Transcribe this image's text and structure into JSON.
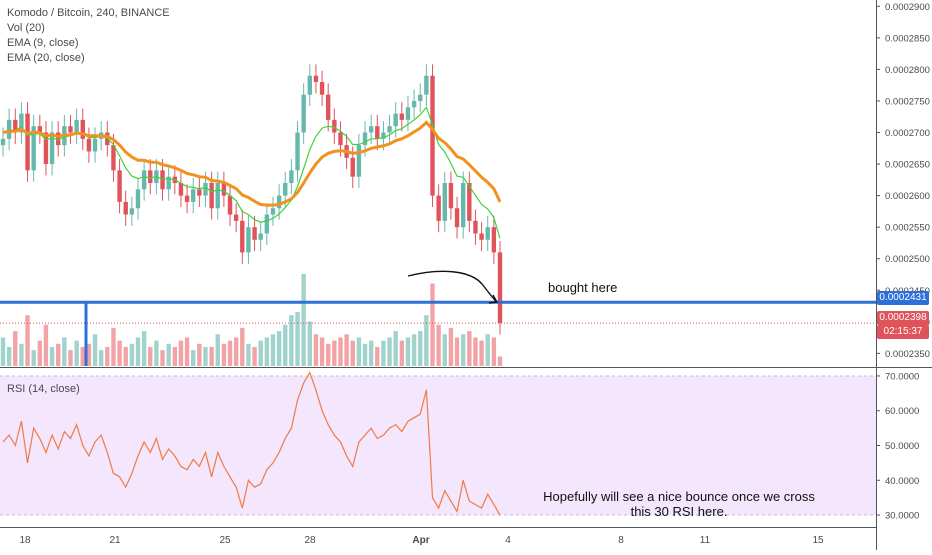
{
  "legend": {
    "symbol": "Komodo / Bitcoin, 240, BINANCE",
    "vol": "Vol (20)",
    "ema9": "EMA (9, close)",
    "ema20": "EMA (20, close)"
  },
  "rsi_label": "RSI (14, close)",
  "annotations": {
    "bought": "bought here",
    "bounce": "Hopefully will see a nice bounce once we cross this 30 RSI here."
  },
  "price_tags": {
    "line_price": "0.0002431",
    "last_price": "0.0002398",
    "countdown": "02:15:37"
  },
  "colors": {
    "up": "#67b8ac",
    "down": "#e0535a",
    "ema9": "#3fd23f",
    "ema20": "#f0921e",
    "hline": "#2f6fd8",
    "rsi": "#f07a45",
    "rsi_band": "#f3e6fd",
    "vol_up": "#9fd3cc",
    "vol_down": "#f2a3a6"
  },
  "chart_data": [
    {
      "type": "candlestick",
      "ylim": [
        0.000233,
        0.000291
      ],
      "y_ticks": [
        "0.0002350",
        "0.0002400",
        "0.0002450",
        "0.0002500",
        "0.0002550",
        "0.0002600",
        "0.0002650",
        "0.0002700",
        "0.0002750",
        "0.0002800",
        "0.0002850",
        "0.0002900"
      ],
      "x_ticks": [
        "18",
        "21",
        "25",
        "28",
        "Apr",
        "4",
        "8",
        "11",
        "15"
      ],
      "horizontal_line": 0.0002431,
      "last_price": 0.0002398,
      "close": [
        0.000269,
        0.000272,
        0.00027,
        0.000273,
        0.000264,
        0.000271,
        0.00027,
        0.000265,
        0.00027,
        0.000268,
        0.000271,
        0.00027,
        0.000272,
        0.000269,
        0.000267,
        0.000269,
        0.00027,
        0.000268,
        0.000264,
        0.000259,
        0.000257,
        0.000258,
        0.000261,
        0.000264,
        0.000262,
        0.000264,
        0.000261,
        0.000263,
        0.000262,
        0.00026,
        0.000259,
        0.000261,
        0.00026,
        0.000262,
        0.000258,
        0.000262,
        0.00026,
        0.000257,
        0.000256,
        0.000251,
        0.000255,
        0.000253,
        0.000254,
        0.000257,
        0.000258,
        0.00026,
        0.000262,
        0.000264,
        0.00027,
        0.000276,
        0.000279,
        0.000278,
        0.000276,
        0.000272,
        0.00027,
        0.000268,
        0.000266,
        0.000263,
        0.000268,
        0.00027,
        0.000271,
        0.000269,
        0.00027,
        0.000271,
        0.000273,
        0.000272,
        0.000274,
        0.000275,
        0.000276,
        0.000279,
        0.00026,
        0.000256,
        0.000262,
        0.000258,
        0.000255,
        0.000262,
        0.000256,
        0.000254,
        0.000253,
        0.000255,
        0.000251,
        0.0002398
      ],
      "ema9": [
        0.00027,
        0.0002704,
        0.0002703,
        0.0002709,
        0.0002695,
        0.0002698,
        0.0002698,
        0.0002689,
        0.0002691,
        0.0002689,
        0.0002693,
        0.0002695,
        0.00027,
        0.0002698,
        0.0002692,
        0.0002692,
        0.0002694,
        0.0002691,
        0.0002681,
        0.0002663,
        0.0002644,
        0.0002631,
        0.0002627,
        0.000263,
        0.0002628,
        0.000263,
        0.0002626,
        0.0002627,
        0.0002625,
        0.000262,
        0.0002614,
        0.0002613,
        0.0002611,
        0.0002613,
        0.0002606,
        0.0002609,
        0.0002607,
        0.00026,
        0.0002592,
        0.0002575,
        0.000257,
        0.0002562,
        0.0002558,
        0.000256,
        0.0002564,
        0.0002571,
        0.0002581,
        0.0002593,
        0.0002614,
        0.0002643,
        0.0002673,
        0.0002694,
        0.0002707,
        0.000271,
        0.0002708,
        0.0002702,
        0.0002694,
        0.0002681,
        0.0002681,
        0.0002685,
        0.000269,
        0.000269,
        0.0002692,
        0.0002696,
        0.0002703,
        0.0002706,
        0.0002713,
        0.000272,
        0.0002728,
        0.000274,
        0.0002712,
        0.0002681,
        0.0002669,
        0.0002651,
        0.0002631,
        0.0002629,
        0.0002615,
        0.00026,
        0.0002586,
        0.0002579,
        0.0002565,
        0.0002532
      ],
      "ema20": [
        0.00027,
        0.0002702,
        0.0002702,
        0.0002705,
        0.0002699,
        0.00027,
        0.00027,
        0.0002695,
        0.0002696,
        0.0002694,
        0.0002696,
        0.0002696,
        0.0002699,
        0.0002698,
        0.0002695,
        0.0002695,
        0.0002695,
        0.0002694,
        0.0002689,
        0.000268,
        0.0002669,
        0.0002661,
        0.0002656,
        0.0002656,
        0.0002653,
        0.0002653,
        0.0002649,
        0.0002647,
        0.0002644,
        0.000264,
        0.0002635,
        0.0002633,
        0.000263,
        0.0002629,
        0.0002624,
        0.0002623,
        0.0002621,
        0.0002616,
        0.0002611,
        0.0002601,
        0.0002597,
        0.0002591,
        0.0002586,
        0.0002585,
        0.0002585,
        0.0002586,
        0.000259,
        0.0002595,
        0.0002605,
        0.000262,
        0.0002636,
        0.000265,
        0.0002661,
        0.0002667,
        0.000267,
        0.0002671,
        0.000267,
        0.0002667,
        0.0002668,
        0.0002671,
        0.0002675,
        0.0002677,
        0.0002679,
        0.0002682,
        0.0002687,
        0.000269,
        0.0002695,
        0.0002701,
        0.0002707,
        0.0002716,
        0.0002705,
        0.0002691,
        0.0002684,
        0.0002674,
        0.0002662,
        0.0002658,
        0.0002649,
        0.0002639,
        0.0002629,
        0.0002621,
        0.0002611,
        0.000259
      ],
      "volume": [
        0.9,
        0.6,
        1.1,
        0.7,
        1.6,
        0.5,
        0.8,
        1.3,
        0.6,
        0.7,
        0.9,
        0.5,
        0.8,
        0.6,
        0.7,
        1.0,
        0.5,
        0.6,
        1.2,
        0.8,
        0.6,
        0.7,
        0.9,
        1.1,
        0.6,
        0.8,
        0.5,
        0.7,
        0.6,
        0.8,
        0.9,
        0.5,
        0.7,
        0.6,
        0.6,
        1.0,
        0.7,
        0.8,
        0.9,
        1.2,
        0.7,
        0.6,
        0.8,
        0.9,
        1.0,
        1.1,
        1.3,
        1.6,
        1.7,
        2.9,
        1.4,
        1.0,
        0.9,
        0.7,
        0.8,
        0.9,
        1.0,
        0.8,
        0.9,
        0.7,
        0.8,
        0.6,
        0.8,
        0.9,
        1.1,
        0.8,
        0.9,
        1.0,
        1.1,
        1.6,
        2.6,
        1.3,
        1.0,
        1.2,
        0.9,
        1.0,
        1.1,
        0.9,
        0.8,
        1.0,
        0.9,
        0.3
      ]
    },
    {
      "type": "line",
      "name": "RSI (14, close)",
      "ylim": [
        28,
        72
      ],
      "y_ticks": [
        "30.0000",
        "40.0000",
        "50.0000",
        "60.0000",
        "70.0000"
      ],
      "band": [
        30,
        70
      ],
      "values": [
        51,
        53,
        50,
        57,
        45,
        55,
        52,
        48,
        53,
        49,
        54,
        52,
        56,
        50,
        47,
        51,
        53,
        48,
        42,
        41,
        38,
        42,
        47,
        51,
        48,
        52,
        46,
        49,
        47,
        44,
        43,
        46,
        44,
        48,
        41,
        48,
        44,
        41,
        38,
        32,
        40,
        38,
        39,
        43,
        45,
        48,
        52,
        55,
        63,
        68,
        71,
        66,
        60,
        56,
        53,
        51,
        47,
        44,
        51,
        53,
        55,
        52,
        53,
        55,
        56,
        54,
        57,
        58,
        59,
        66,
        35,
        32,
        37,
        34,
        31,
        40,
        34,
        33,
        32,
        36,
        33,
        30
      ]
    }
  ]
}
